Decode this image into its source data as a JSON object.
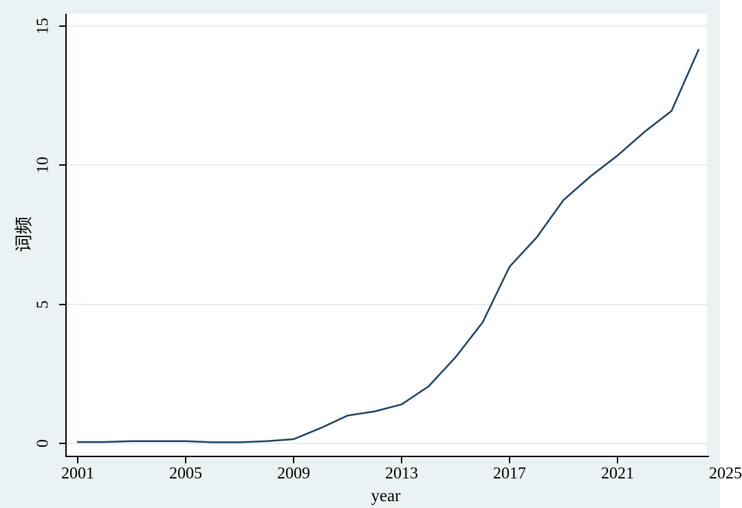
{
  "chart_data": {
    "type": "line",
    "title": "",
    "xlabel": "year",
    "ylabel": "词频",
    "x": [
      2001,
      2002,
      2003,
      2004,
      2005,
      2006,
      2007,
      2008,
      2009,
      2010,
      2011,
      2012,
      2013,
      2014,
      2015,
      2016,
      2017,
      2018,
      2019,
      2020,
      2021,
      2022,
      2023,
      2024
    ],
    "series": [
      {
        "name": "词频",
        "values": [
          0.05,
          0.05,
          0.08,
          0.08,
          0.08,
          0.04,
          0.04,
          0.08,
          0.15,
          0.55,
          1.0,
          1.15,
          1.4,
          2.05,
          3.1,
          4.35,
          6.35,
          7.4,
          8.75,
          9.6,
          10.35,
          11.2,
          11.95,
          14.15
        ]
      }
    ],
    "x_tick_labels": [
      2001,
      2005,
      2009,
      2013,
      2017,
      2021,
      2025
    ],
    "y_tick_labels": [
      0,
      5,
      10,
      15
    ],
    "xlim": [
      2001,
      2025
    ],
    "ylim": [
      0,
      15
    ],
    "grid": "horizontal-only",
    "legend": "none",
    "colors": {
      "line": "#1c4062",
      "background": "#eaf2f3",
      "plot_background": "#ffffff",
      "gridline": "#e8eef0",
      "axis": "#000000"
    }
  }
}
